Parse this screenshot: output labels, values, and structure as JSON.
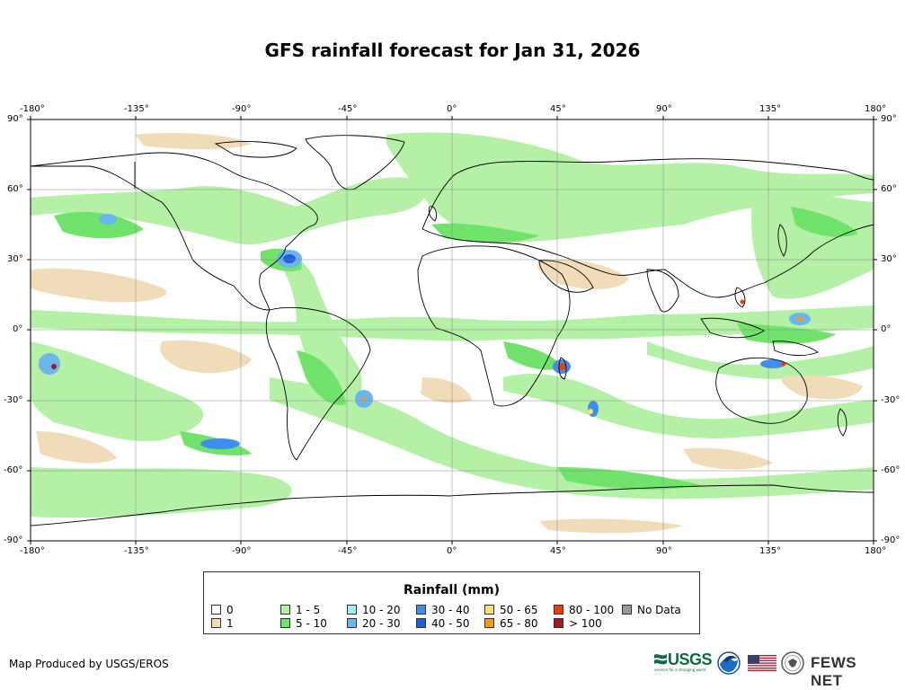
{
  "title": "GFS rainfall forecast for Jan 31, 2026",
  "axes": {
    "longitude_labels": [
      "-180°",
      "-135°",
      "-90°",
      "-45°",
      "0°",
      "45°",
      "90°",
      "135°",
      "180°"
    ],
    "latitude_labels_left": [
      "90°",
      "60°",
      "30°",
      "0°",
      "-30°",
      "-60°",
      "-90°"
    ],
    "latitude_labels_right": [
      "90°",
      "60°",
      "30°",
      "0°",
      "-30°",
      "-60°",
      "-90°"
    ]
  },
  "legend": {
    "title": "Rainfall (mm)",
    "items": [
      {
        "label": "0",
        "color": "#ffffff"
      },
      {
        "label": "1",
        "color": "#f0dcb8"
      },
      {
        "label": "1 - 5",
        "color": "#b4f0a6"
      },
      {
        "label": "5 - 10",
        "color": "#6fe36a"
      },
      {
        "label": "10 - 20",
        "color": "#a8ecf0"
      },
      {
        "label": "20 - 30",
        "color": "#6cb6f0"
      },
      {
        "label": "30 - 40",
        "color": "#3e8ef0"
      },
      {
        "label": "40 - 50",
        "color": "#1d5fe0"
      },
      {
        "label": "50 - 65",
        "color": "#f7e27a"
      },
      {
        "label": "65 - 80",
        "color": "#f59a14"
      },
      {
        "label": "80 - 100",
        "color": "#f23c0c"
      },
      {
        "label": "> 100",
        "color": "#a01e1e"
      },
      {
        "label": "No Data",
        "color": "#999999"
      }
    ]
  },
  "credit": "Map Produced by USGS/EROS",
  "logos": {
    "usgs": "USGS",
    "usgs_tagline": "science for a changing world",
    "fews": "FEWS NET"
  }
}
